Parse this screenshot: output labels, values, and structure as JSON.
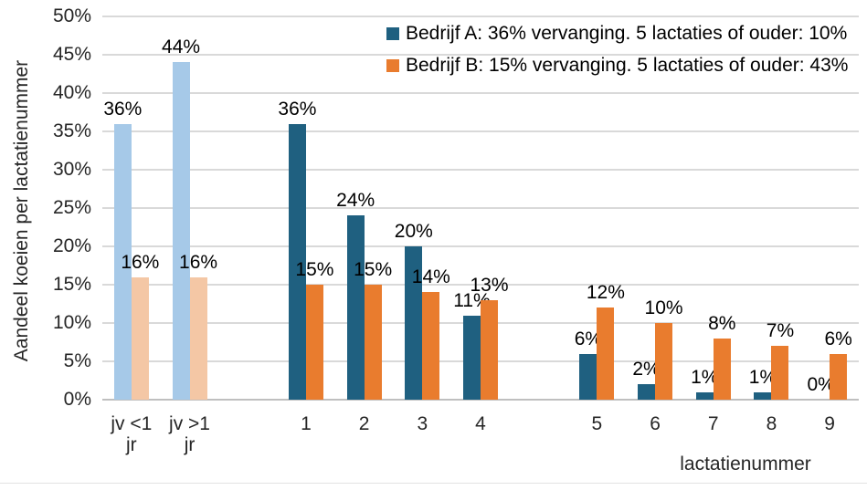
{
  "chart_data": {
    "type": "bar",
    "title": "",
    "ylabel": "Aandeel koeien per lactatienummer",
    "xlabel": "lactatienummer",
    "ylim": [
      0,
      50
    ],
    "ytick_step": 5,
    "ytick_suffix": "%",
    "grid": "horizontal",
    "legend_position": "top-right",
    "legend": [
      {
        "label": "Bedrijf A: 36% vervanging. 5 lactaties of ouder: 10%",
        "color": "#1f6080"
      },
      {
        "label": "Bedrijf B: 15% vervanging. 5 lactaties of ouder: 43%",
        "color": "#e97c2e"
      }
    ],
    "series_names": [
      "Bedrijf A",
      "Bedrijf B"
    ],
    "colors": {
      "bedrijf_a": "#1f6080",
      "bedrijf_b": "#e97c2e",
      "bedrijf_a_muted": "#a6c9e8",
      "bedrijf_b_muted": "#f4c7a5"
    },
    "slot_count": 13,
    "categories": [
      {
        "label": "jv <1\njr",
        "slot": 0,
        "muted": true,
        "values": [
          36,
          16
        ]
      },
      {
        "label": "jv >1\njr",
        "slot": 1,
        "muted": true,
        "values": [
          44,
          16
        ]
      },
      {
        "label": "1",
        "slot": 3,
        "muted": false,
        "values": [
          36,
          15
        ]
      },
      {
        "label": "2",
        "slot": 4,
        "muted": false,
        "values": [
          24,
          15
        ]
      },
      {
        "label": "3",
        "slot": 5,
        "muted": false,
        "values": [
          20,
          14
        ]
      },
      {
        "label": "4",
        "slot": 6,
        "muted": false,
        "values": [
          11,
          13
        ]
      },
      {
        "label": "5",
        "slot": 8,
        "muted": false,
        "values": [
          6,
          12
        ]
      },
      {
        "label": "6",
        "slot": 9,
        "muted": false,
        "values": [
          2,
          10
        ]
      },
      {
        "label": "7",
        "slot": 10,
        "muted": false,
        "values": [
          1,
          8
        ]
      },
      {
        "label": "8",
        "slot": 11,
        "muted": false,
        "values": [
          1,
          7
        ]
      },
      {
        "label": "9",
        "slot": 12,
        "muted": false,
        "values": [
          0,
          6
        ]
      }
    ],
    "data_label_suffix": "%"
  }
}
